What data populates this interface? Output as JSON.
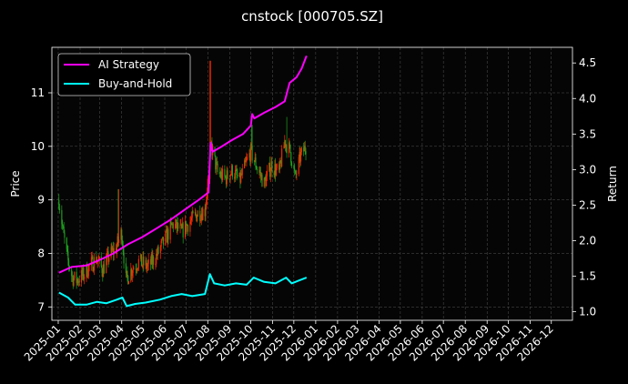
{
  "chart_data": {
    "type": "line",
    "title": "cnstock [000705.SZ]",
    "ylabel_left": "Price",
    "ylabel_right": "Return",
    "x_range": [
      "2024-12-23",
      "2026-12-31"
    ],
    "ylim_left": [
      6.75,
      11.85
    ],
    "ylim_right": [
      0.88,
      4.72
    ],
    "x_ticks": [
      "2025-01",
      "2025-02",
      "2025-03",
      "2025-04",
      "2025-05",
      "2025-06",
      "2025-07",
      "2025-08",
      "2025-09",
      "2025-10",
      "2025-11",
      "2025-12",
      "2026-01",
      "2026-02",
      "2026-03",
      "2026-04",
      "2026-05",
      "2026-06",
      "2026-07",
      "2026-08",
      "2026-09",
      "2026-10",
      "2026-11",
      "2026-12"
    ],
    "y_ticks_left": [
      7,
      8,
      9,
      10,
      11
    ],
    "y_ticks_right": [
      1.0,
      1.5,
      2.0,
      2.5,
      3.0,
      3.5,
      4.0,
      4.5
    ],
    "grid": true,
    "legend_position": "top-left",
    "candle_colors": {
      "up": "#ff2a00",
      "down": "#1fa51f"
    },
    "price_path": [
      [
        "2025-01-02",
        9.0
      ],
      [
        "2025-01-08",
        8.4
      ],
      [
        "2025-01-14",
        7.9
      ],
      [
        "2025-01-21",
        7.55
      ],
      [
        "2025-01-27",
        7.5
      ],
      [
        "2025-02-06",
        7.6
      ],
      [
        "2025-02-14",
        7.75
      ],
      [
        "2025-02-24",
        7.9
      ],
      [
        "2025-03-05",
        7.7
      ],
      [
        "2025-03-14",
        7.95
      ],
      [
        "2025-03-24",
        8.1
      ],
      [
        "2025-04-01",
        8.4
      ],
      [
        "2025-04-07",
        7.5
      ],
      [
        "2025-04-15",
        7.7
      ],
      [
        "2025-04-25",
        7.85
      ],
      [
        "2025-05-08",
        7.75
      ],
      [
        "2025-05-20",
        7.95
      ],
      [
        "2025-06-03",
        8.3
      ],
      [
        "2025-06-13",
        8.55
      ],
      [
        "2025-06-25",
        8.4
      ],
      [
        "2025-07-07",
        8.6
      ],
      [
        "2025-07-18",
        8.75
      ],
      [
        "2025-07-28",
        8.8
      ],
      [
        "2025-08-06",
        10.0
      ],
      [
        "2025-08-15",
        9.5
      ],
      [
        "2025-08-26",
        9.4
      ],
      [
        "2025-09-05",
        9.55
      ],
      [
        "2025-09-15",
        9.35
      ],
      [
        "2025-09-25",
        9.7
      ],
      [
        "2025-10-01",
        9.9
      ],
      [
        "2025-10-10",
        9.6
      ],
      [
        "2025-10-20",
        9.3
      ],
      [
        "2025-10-30",
        9.65
      ],
      [
        "2025-11-10",
        9.5
      ],
      [
        "2025-11-18",
        10.1
      ],
      [
        "2025-11-26",
        9.9
      ],
      [
        "2025-12-03",
        9.4
      ],
      [
        "2025-12-10",
        9.8
      ],
      [
        "2025-12-18",
        10.0
      ]
    ],
    "price_spikes": [
      [
        "2025-03-28",
        9.2
      ],
      [
        "2025-08-04",
        11.6
      ],
      [
        "2025-10-03",
        10.4
      ],
      [
        "2025-11-22",
        10.55
      ]
    ],
    "series": [
      {
        "name": "AI Strategy",
        "axis": "right",
        "color": "#ff00ff",
        "points": [
          [
            "2025-01-02",
            1.55
          ],
          [
            "2025-01-20",
            1.63
          ],
          [
            "2025-02-10",
            1.65
          ],
          [
            "2025-03-01",
            1.73
          ],
          [
            "2025-03-20",
            1.82
          ],
          [
            "2025-04-10",
            1.95
          ],
          [
            "2025-04-30",
            2.05
          ],
          [
            "2025-05-20",
            2.17
          ],
          [
            "2025-06-10",
            2.3
          ],
          [
            "2025-06-30",
            2.44
          ],
          [
            "2025-07-20",
            2.58
          ],
          [
            "2025-08-02",
            2.68
          ],
          [
            "2025-08-05",
            3.38
          ],
          [
            "2025-08-08",
            3.25
          ],
          [
            "2025-08-20",
            3.32
          ],
          [
            "2025-09-05",
            3.42
          ],
          [
            "2025-09-20",
            3.5
          ],
          [
            "2025-10-01",
            3.62
          ],
          [
            "2025-10-03",
            3.78
          ],
          [
            "2025-10-06",
            3.72
          ],
          [
            "2025-10-20",
            3.8
          ],
          [
            "2025-11-05",
            3.88
          ],
          [
            "2025-11-18",
            3.96
          ],
          [
            "2025-11-25",
            4.22
          ],
          [
            "2025-12-05",
            4.3
          ],
          [
            "2025-12-12",
            4.42
          ],
          [
            "2025-12-19",
            4.6
          ]
        ]
      },
      {
        "name": "Buy-and-Hold",
        "axis": "right",
        "color": "#00ffff",
        "points": [
          [
            "2025-01-02",
            1.27
          ],
          [
            "2025-01-15",
            1.2
          ],
          [
            "2025-01-25",
            1.1
          ],
          [
            "2025-02-10",
            1.1
          ],
          [
            "2025-02-25",
            1.14
          ],
          [
            "2025-03-10",
            1.12
          ],
          [
            "2025-03-25",
            1.17
          ],
          [
            "2025-04-02",
            1.2
          ],
          [
            "2025-04-08",
            1.08
          ],
          [
            "2025-04-20",
            1.11
          ],
          [
            "2025-05-05",
            1.13
          ],
          [
            "2025-05-25",
            1.17
          ],
          [
            "2025-06-10",
            1.22
          ],
          [
            "2025-06-25",
            1.25
          ],
          [
            "2025-07-10",
            1.22
          ],
          [
            "2025-07-28",
            1.25
          ],
          [
            "2025-08-04",
            1.53
          ],
          [
            "2025-08-10",
            1.4
          ],
          [
            "2025-08-25",
            1.37
          ],
          [
            "2025-09-10",
            1.4
          ],
          [
            "2025-09-25",
            1.38
          ],
          [
            "2025-10-05",
            1.48
          ],
          [
            "2025-10-20",
            1.42
          ],
          [
            "2025-11-05",
            1.4
          ],
          [
            "2025-11-20",
            1.48
          ],
          [
            "2025-11-28",
            1.4
          ],
          [
            "2025-12-08",
            1.44
          ],
          [
            "2025-12-19",
            1.48
          ]
        ]
      }
    ]
  }
}
